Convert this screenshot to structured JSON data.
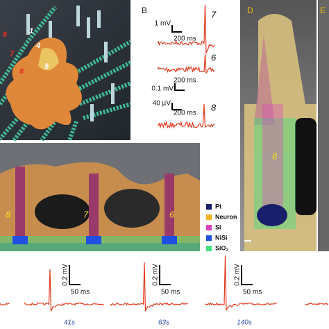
{
  "panel_a": {
    "cell_labels": [
      "1",
      "4",
      "6",
      "7",
      "8",
      "5"
    ]
  },
  "panel_b": {
    "label": "B",
    "recordings": [
      {
        "scale_y": "1 mV",
        "scale_x": "200 ms",
        "electrode": "7"
      },
      {
        "scale_y": "0.1 mV",
        "scale_x": "200 ms",
        "electrode": "6"
      },
      {
        "scale_y": "40 µV",
        "scale_x": "200 ms",
        "electrode": "8"
      }
    ]
  },
  "panel_c": {
    "electrodes": [
      "8",
      "7",
      "6"
    ],
    "legend": [
      "Pt",
      "Neuron",
      "Si",
      "NiSi",
      "SiO₂"
    ]
  },
  "panel_d": {
    "label": "D",
    "electrode": "8"
  },
  "panel_e": {
    "label": "E"
  },
  "panel_f": {
    "recordings": [
      {
        "scale_y": "0.2 mV",
        "scale_x": "50 ms",
        "time": "41s"
      },
      {
        "scale_y": "0.2 mV",
        "scale_x": "50 ms",
        "time": "63s"
      },
      {
        "scale_y": "0.2 mV",
        "scale_x": "50 ms",
        "time": "140s"
      }
    ]
  }
}
